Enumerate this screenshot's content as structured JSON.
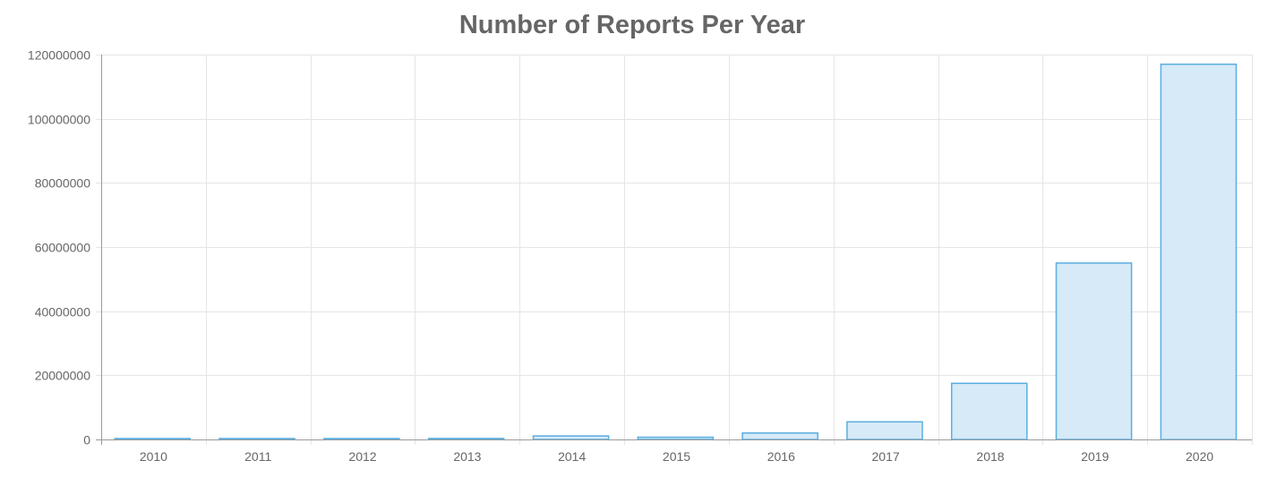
{
  "chart_data": {
    "type": "bar",
    "title": "Number of Reports Per Year",
    "xlabel": "",
    "ylabel": "",
    "categories": [
      "2010",
      "2011",
      "2012",
      "2013",
      "2014",
      "2015",
      "2016",
      "2017",
      "2018",
      "2019",
      "2020"
    ],
    "values": [
      150000,
      200000,
      250000,
      300000,
      1100000,
      700000,
      2000000,
      5500000,
      17500000,
      55000000,
      117000000
    ],
    "ylim": [
      0,
      120000000
    ],
    "yticks": [
      "0",
      "20000000",
      "40000000",
      "60000000",
      "80000000",
      "100000000",
      "120000000"
    ],
    "grid": true,
    "legend": "none",
    "colors": {
      "bar_fill": "#d6eaf8",
      "bar_stroke": "#5aaee0",
      "grid": "#e5e5e5",
      "axis": "#9a9a9a",
      "text": "#666666"
    }
  }
}
